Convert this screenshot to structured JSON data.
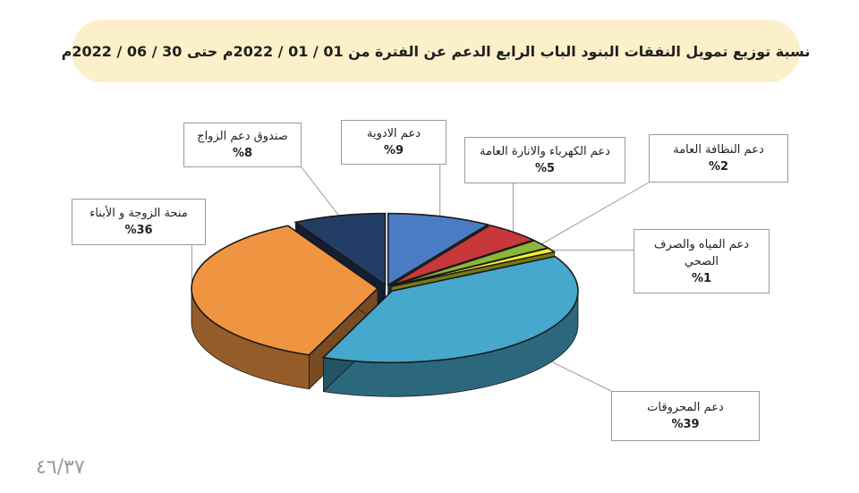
{
  "banner": {
    "title": "نسبة توزيع تمويل النفقات البنود الباب الرابع الدعم عن الفترة من 01 / 01 / 2022م حتى 30 / 06 / 2022م"
  },
  "page_number": "٤٦/٣٧",
  "colors": {
    "banner_bg": "#fbf0c9",
    "medicine": "#4a7cc4",
    "electricity": "#c8383a",
    "cleaning": "#8bb63a",
    "water": "#f0f02a",
    "fuel": "#45a8cc",
    "spouse_children": "#ef9541",
    "marriage_fund": "#233e66"
  },
  "chart_data": {
    "type": "pie",
    "title": "",
    "slices": [
      {
        "label": "دعم الادوية",
        "value": 9,
        "value_label": "%9",
        "color": "#4a7cc4"
      },
      {
        "label": "دعم الكهرباء والانارة العامة",
        "value": 5,
        "value_label": "%5",
        "color": "#c8383a"
      },
      {
        "label": "دعم النظافة العامة",
        "value": 2,
        "value_label": "%2",
        "color": "#8bb63a"
      },
      {
        "label": "دعم المياه والصرف الصحي",
        "value": 1,
        "value_label": "%1",
        "color": "#f0f02a"
      },
      {
        "label": "دعم المحروقات",
        "value": 39,
        "value_label": "%39",
        "color": "#45a8cc"
      },
      {
        "label": "منحة الزوجة و الأبناء",
        "value": 36,
        "value_label": "%36",
        "color": "#ef9541"
      },
      {
        "label": "صندوق دعم الزواج",
        "value": 8,
        "value_label": "%8",
        "color": "#233e66"
      }
    ],
    "style": "3d-exploded",
    "legend": "callouts"
  }
}
